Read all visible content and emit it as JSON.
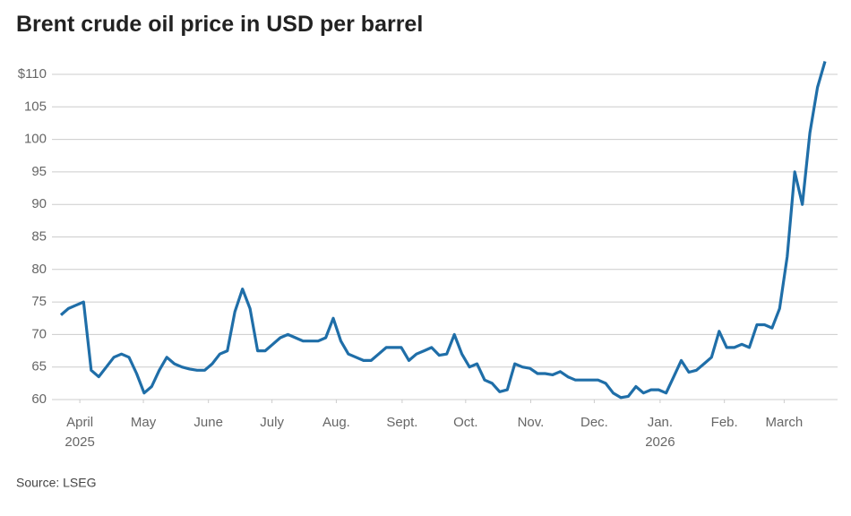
{
  "chart_data": {
    "type": "line",
    "title": "Brent crude oil price in USD per barrel",
    "source": "Source: LSEG",
    "color": "#1f6ea8",
    "grid": true,
    "values": [
      73,
      74,
      74.5,
      75,
      64.5,
      63.5,
      65,
      66.5,
      67,
      66.5,
      64,
      61,
      62,
      64.5,
      66.5,
      65.5,
      65,
      64.7,
      64.5,
      64.5,
      65.5,
      67,
      67.5,
      73.5,
      77,
      74,
      67.5,
      67.5,
      68.5,
      69.5,
      70,
      69.5,
      69,
      69,
      69,
      69.5,
      72.5,
      69,
      67,
      66.5,
      66,
      66,
      67,
      68,
      68,
      68,
      66,
      67,
      67.5,
      68,
      66.8,
      67,
      70,
      67,
      65,
      65.5,
      63,
      62.5,
      61.2,
      61.5,
      65.5,
      65,
      64.8,
      64,
      64,
      63.8,
      64.3,
      63.5,
      63,
      63,
      63,
      63,
      62.5,
      61,
      60.3,
      60.5,
      62,
      61,
      61.5,
      61.5,
      61,
      63.5,
      66,
      64.2,
      64.5,
      65.5,
      66.5,
      70.5,
      68,
      68,
      68.5,
      68,
      71.5,
      71.5,
      71,
      74,
      82,
      95,
      90,
      101,
      108,
      112
    ],
    "xlim": [
      0,
      101
    ],
    "xticks": [
      {
        "value": 2.5,
        "label": "April"
      },
      {
        "value": 10.9,
        "label": "May"
      },
      {
        "value": 19.5,
        "label": "June"
      },
      {
        "value": 27.9,
        "label": "July"
      },
      {
        "value": 36.4,
        "label": "Aug."
      },
      {
        "value": 45.1,
        "label": "Sept."
      },
      {
        "value": 53.5,
        "label": "Oct."
      },
      {
        "value": 62.1,
        "label": "Nov."
      },
      {
        "value": 70.5,
        "label": "Dec."
      },
      {
        "value": 79.2,
        "label": "Jan."
      },
      {
        "value": 87.7,
        "label": "Feb."
      },
      {
        "value": 95.6,
        "label": "March"
      }
    ],
    "year_labels": [
      {
        "value": 2.5,
        "label": "2025"
      },
      {
        "value": 79.2,
        "label": "2026"
      }
    ],
    "ylim": [
      60,
      110
    ],
    "yticks": [
      60,
      65,
      70,
      75,
      80,
      85,
      90,
      95,
      100,
      105,
      {
        "value": 110,
        "label": "$110"
      }
    ]
  }
}
